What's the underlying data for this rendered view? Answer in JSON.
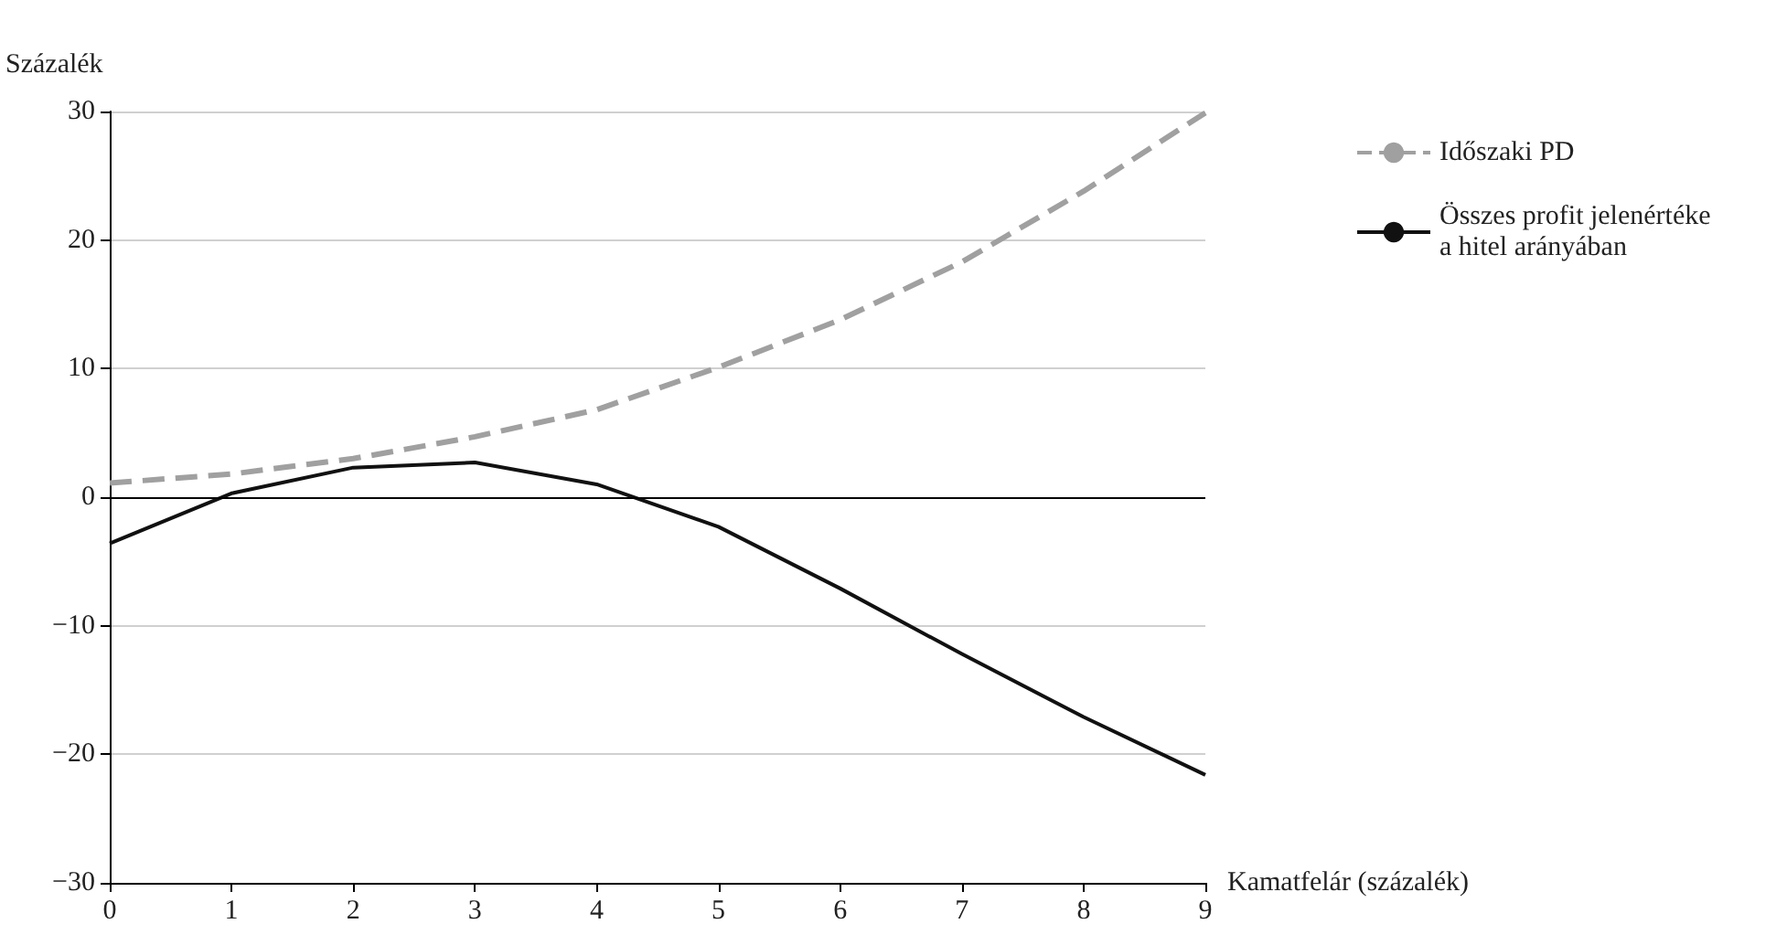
{
  "chart_data": {
    "type": "line",
    "ylabel": "Százalék",
    "xlabel": "Kamatfelár (százalék)",
    "x": [
      0,
      1,
      2,
      3,
      4,
      5,
      6,
      7,
      8,
      9
    ],
    "xlim": [
      0,
      9
    ],
    "xticks": [
      0,
      1,
      2,
      3,
      4,
      5,
      6,
      7,
      8,
      9
    ],
    "ylim": [
      -30,
      30
    ],
    "yticks": [
      {
        "value": -30,
        "label": "−30"
      },
      {
        "value": -20,
        "label": "−20"
      },
      {
        "value": -10,
        "label": "−10"
      },
      0,
      10,
      20,
      30
    ],
    "series": [
      {
        "name": "Időszaki PD",
        "color": "#a0a0a0",
        "line_style": "dashed",
        "values": [
          1.1,
          1.8,
          3.0,
          4.7,
          6.8,
          10.1,
          13.8,
          18.3,
          23.8,
          29.9
        ]
      },
      {
        "name": "Összes profit jelenértéke a hitel arányában",
        "color": "#111111",
        "line_style": "solid",
        "values": [
          -3.6,
          0.3,
          2.3,
          2.7,
          1.0,
          -2.3,
          -7.1,
          -12.2,
          -17.1,
          -21.6
        ]
      }
    ],
    "ref_lines": [
      {
        "axis": "y",
        "value": 0,
        "color": "#000000"
      }
    ],
    "grid": "y",
    "legend": "right",
    "marker": "none"
  }
}
